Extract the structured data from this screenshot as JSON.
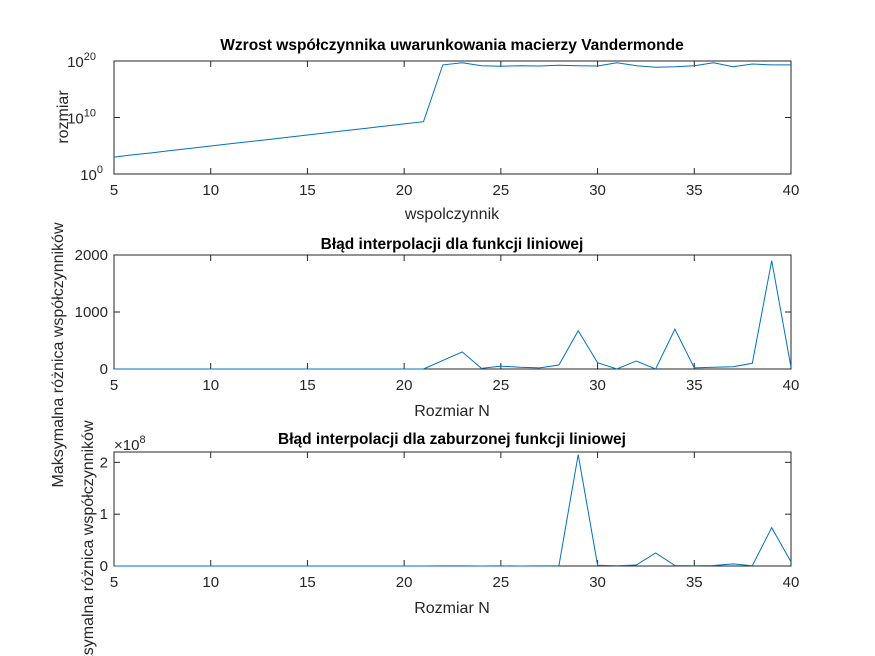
{
  "colors": {
    "line": "#0072BD",
    "axis": "#262626",
    "background": "#ffffff"
  },
  "chart_data": [
    {
      "type": "line",
      "title": "Wzrost współczynnika uwarunkowania macierzy Vandermonde",
      "xlabel": "wspolczynnik",
      "ylabel": "rozmiar",
      "xlim": [
        5,
        40
      ],
      "ylim": [
        1,
        1e+20
      ],
      "yscale": "log",
      "grid": false,
      "xticks": [
        "5",
        "10",
        "15",
        "20",
        "25",
        "30",
        "35",
        "40"
      ],
      "yticks": [
        {
          "base": "10",
          "exp": "0"
        },
        {
          "base": "10",
          "exp": "10"
        },
        {
          "base": "10",
          "exp": "20"
        }
      ],
      "x": [
        5,
        6,
        7,
        8,
        9,
        10,
        11,
        12,
        13,
        14,
        15,
        16,
        17,
        18,
        19,
        20,
        21,
        22,
        23,
        24,
        25,
        26,
        27,
        28,
        29,
        30,
        31,
        32,
        33,
        34,
        35,
        36,
        37,
        38,
        39,
        40
      ],
      "y": [
        1000.0,
        2500.0,
        6000.0,
        15000.0,
        37000.0,
        90000.0,
        220000.0,
        550000.0,
        1300000.0,
        3200000.0,
        8000000.0,
        20000000.0,
        50000000.0,
        120000000.0,
        300000000.0,
        750000000.0,
        1800000000.0,
        2e+19,
        5e+19,
        1.5e+19,
        1.2e+19,
        1.5e+19,
        1.3e+19,
        1.8e+19,
        1.5e+19,
        1.3e+19,
        5e+19,
        1.5e+19,
        8e+18,
        1e+19,
        1.5e+19,
        5e+19,
        1e+19,
        3e+19,
        2e+19,
        2e+19
      ]
    },
    {
      "type": "line",
      "title": "Błąd interpolacji dla funkcji liniowej",
      "xlabel": "Rozmiar N",
      "ylabel": "Maksymalna różnica współczynników",
      "xlim": [
        5,
        40
      ],
      "ylim": [
        0,
        2000
      ],
      "grid": false,
      "xticks": [
        "5",
        "10",
        "15",
        "20",
        "25",
        "30",
        "35",
        "40"
      ],
      "yticks": [
        "0",
        "1000",
        "2000"
      ],
      "x": [
        5,
        6,
        7,
        8,
        9,
        10,
        11,
        12,
        13,
        14,
        15,
        16,
        17,
        18,
        19,
        20,
        21,
        22,
        23,
        24,
        25,
        26,
        27,
        28,
        29,
        30,
        31,
        32,
        33,
        34,
        35,
        36,
        37,
        38,
        39,
        40
      ],
      "y": [
        0,
        0,
        0,
        0,
        0,
        0,
        0,
        0,
        0,
        0,
        0,
        0,
        0,
        0,
        0,
        0,
        0,
        150,
        300,
        10,
        50,
        30,
        20,
        70,
        670,
        110,
        0,
        140,
        0,
        700,
        20,
        30,
        40,
        100,
        1900,
        30
      ]
    },
    {
      "type": "line",
      "title": "Błąd interpolacji dla zaburzonej funkcji liniowej",
      "xlabel": "Rozmiar N",
      "ylabel": "Maksymalna różnica współczynników",
      "xlim": [
        5,
        40
      ],
      "ylim": [
        0,
        220000000.0
      ],
      "grid": false,
      "exponent_label": {
        "base": "×10",
        "exp": "8"
      },
      "xticks": [
        "5",
        "10",
        "15",
        "20",
        "25",
        "30",
        "35",
        "40"
      ],
      "yticks": [
        "0",
        "1",
        "2"
      ],
      "x": [
        5,
        6,
        7,
        8,
        9,
        10,
        11,
        12,
        13,
        14,
        15,
        16,
        17,
        18,
        19,
        20,
        21,
        22,
        23,
        24,
        25,
        26,
        27,
        28,
        29,
        30,
        31,
        32,
        33,
        34,
        35,
        36,
        37,
        38,
        39,
        40
      ],
      "y": [
        0,
        0,
        0,
        0,
        0,
        0,
        0,
        0,
        0,
        0,
        0,
        0,
        0,
        0,
        0,
        0,
        0,
        100000.0,
        200000.0,
        50000.0,
        100000.0,
        80000.0,
        200000.0,
        500000.0,
        215000000.0,
        1500000.0,
        500000.0,
        2000000.0,
        25000000.0,
        1000000.0,
        500000.0,
        1000000.0,
        4000000.0,
        500000.0,
        74000000.0,
        8000000.0
      ]
    }
  ]
}
